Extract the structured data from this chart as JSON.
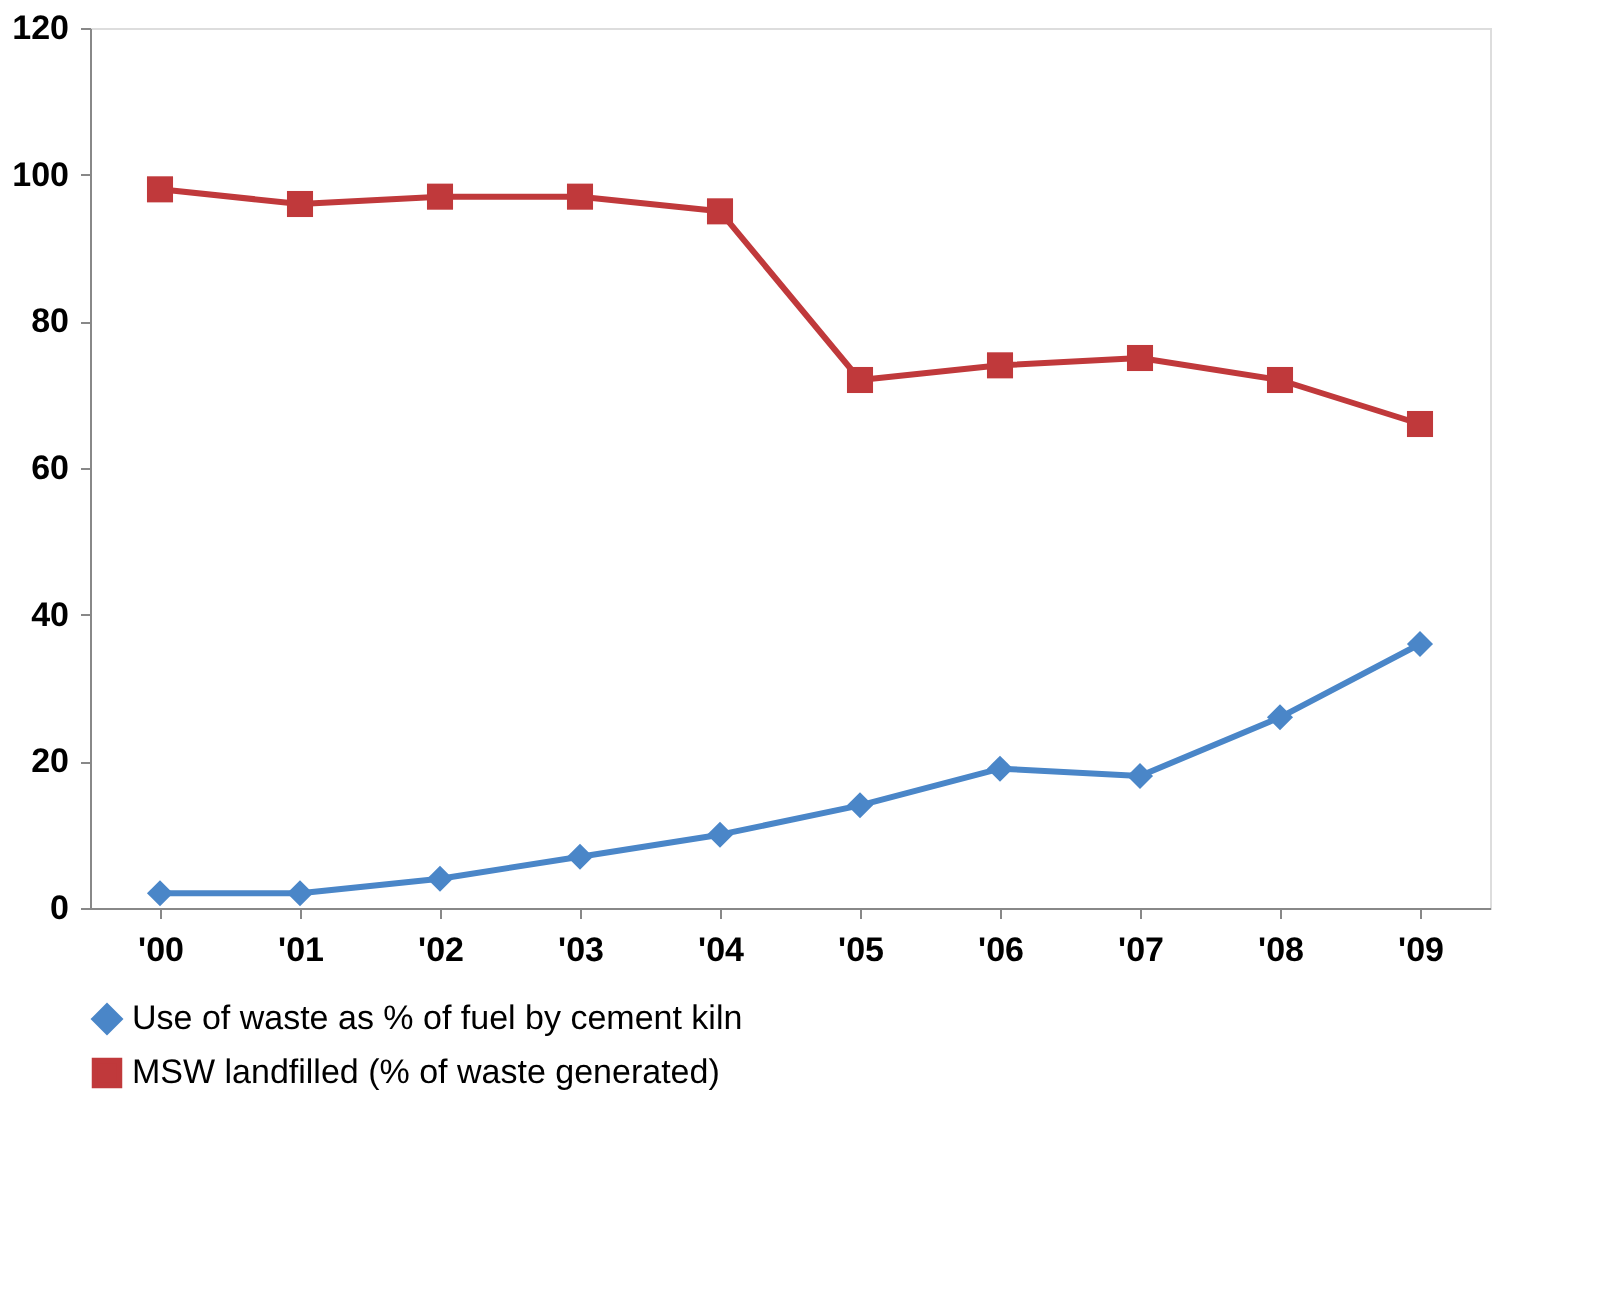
{
  "chart_data": {
    "type": "line",
    "categories": [
      "'00",
      "'01",
      "'02",
      "'03",
      "'04",
      "'05",
      "'06",
      "'07",
      "'08",
      "'09"
    ],
    "series": [
      {
        "name": "Use of waste as % of fuel by cement kiln",
        "color": "#4a86c8",
        "marker": "diamond",
        "values": [
          2,
          2,
          4,
          7,
          10,
          14,
          19,
          18,
          26,
          36
        ]
      },
      {
        "name": "MSW landfilled (% of waste generated)",
        "color": "#c0393b",
        "marker": "square",
        "values": [
          98,
          96,
          97,
          97,
          95,
          72,
          74,
          75,
          72,
          66
        ]
      }
    ],
    "ylim": [
      0,
      120
    ],
    "yticks": [
      0,
      20,
      40,
      60,
      80,
      100,
      120
    ],
    "grid": false,
    "legend": "bottom"
  }
}
